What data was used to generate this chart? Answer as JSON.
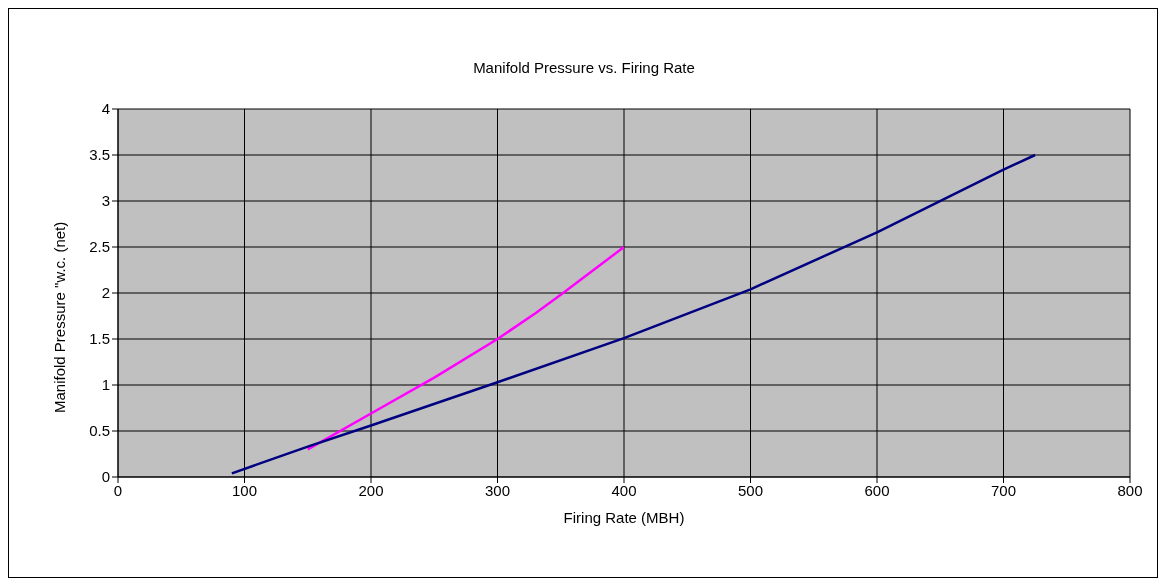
{
  "chart_data": {
    "type": "line",
    "title": "Manifold Pressure vs. Firing Rate",
    "xlabel": "Firing Rate (MBH)",
    "ylabel": "Manifold Pressure \"w.c. (net)",
    "xlim": [
      0,
      800
    ],
    "xticks": [
      0,
      100,
      200,
      300,
      400,
      500,
      600,
      700,
      800
    ],
    "ylim": [
      0,
      4
    ],
    "yticks": [
      0,
      0.5,
      1,
      1.5,
      2,
      2.5,
      3,
      3.5,
      4
    ],
    "grid": true,
    "line_style": "solid",
    "marker": "none",
    "series": [
      {
        "color": "#ff00ff",
        "x": [
          150,
          200,
          250,
          300,
          330,
          350,
          400
        ],
        "values": [
          0.3,
          0.69,
          1.08,
          1.5,
          1.78,
          1.98,
          2.5
        ]
      },
      {
        "color": "#000080",
        "x": [
          90,
          150,
          200,
          300,
          400,
          500,
          600,
          700,
          725
        ],
        "values": [
          0.04,
          0.33,
          0.56,
          1.03,
          1.51,
          2.04,
          2.66,
          3.34,
          3.5
        ]
      }
    ]
  }
}
